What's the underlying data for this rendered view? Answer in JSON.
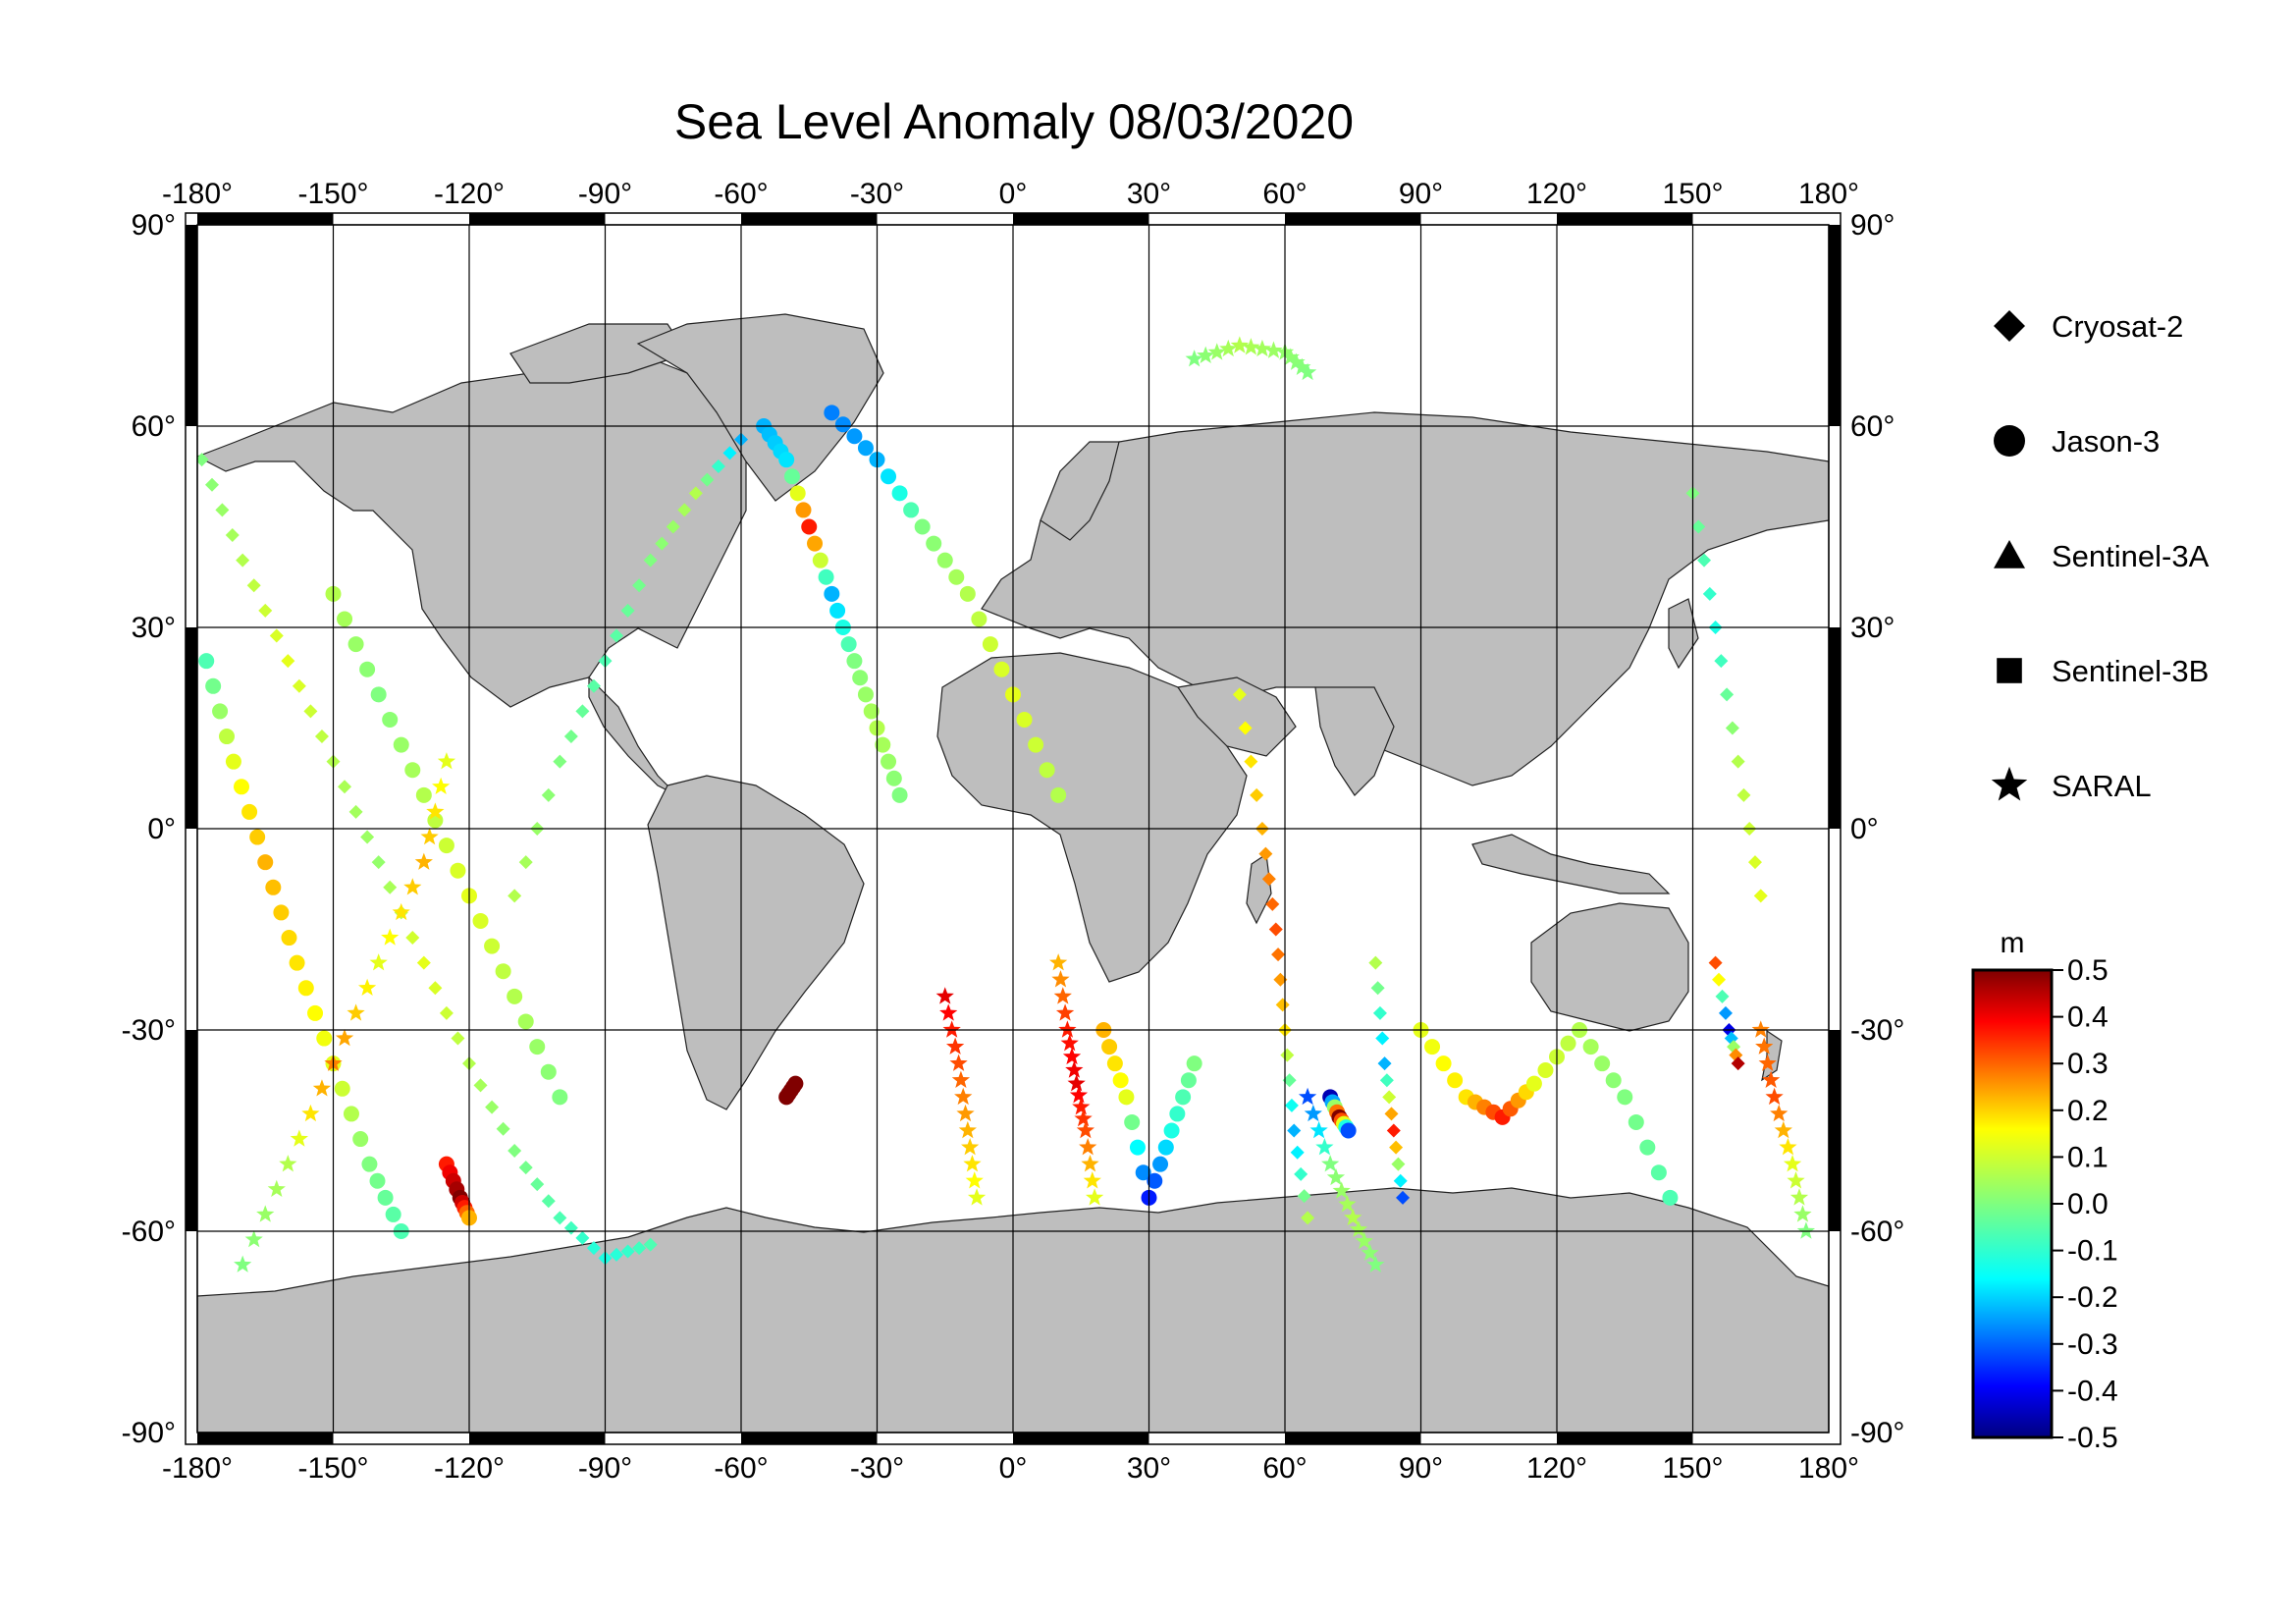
{
  "title": "Sea Level Anomaly 08/03/2020",
  "map": {
    "projection": "plate-carree",
    "lon_range": [
      -180,
      180
    ],
    "lat_range": [
      -90,
      90
    ],
    "lon_ticks": [
      "-180°",
      "-150°",
      "-120°",
      "-90°",
      "-60°",
      "-30°",
      "0°",
      "30°",
      "60°",
      "90°",
      "120°",
      "150°",
      "180°"
    ],
    "lat_ticks": [
      "90°",
      "60°",
      "30°",
      "0°",
      "-30°",
      "-60°",
      "-90°"
    ],
    "land_color": "#bebebe",
    "ocean_color": "#ffffff",
    "grid": true
  },
  "legend": {
    "items": [
      {
        "label": "Cryosat-2",
        "symbol": "diamond"
      },
      {
        "label": "Jason-3",
        "symbol": "circle"
      },
      {
        "label": "Sentinel-3A",
        "symbol": "triangle"
      },
      {
        "label": "Sentinel-3B",
        "symbol": "square"
      },
      {
        "label": "SARAL",
        "symbol": "star"
      }
    ]
  },
  "colorbar": {
    "unit": "m",
    "min": -0.5,
    "max": 0.5,
    "tick_labels": [
      "0.5",
      "0.4",
      "0.3",
      "0.2",
      "0.1",
      "0.0",
      "-0.1",
      "-0.2",
      "-0.3",
      "-0.4",
      "-0.5"
    ],
    "colormap": "jet"
  },
  "chart_data": {
    "type": "scatter",
    "title": "Sea Level Anomaly 08/03/2020",
    "xlabel": "",
    "ylabel": "",
    "xlim": [
      -180,
      180
    ],
    "ylim": [
      -90,
      90
    ],
    "value_unit": "m",
    "value_range": [
      -0.5,
      0.5
    ],
    "series": [
      {
        "name": "Cryosat-2",
        "marker": "diamond",
        "tracks": [
          {
            "lon": [
              -179,
              -170,
              -160,
              -150,
              -140,
              -130,
              -120,
              -110,
              -100,
              -90,
              -80
            ],
            "lat": [
              55,
              40,
              25,
              10,
              -5,
              -20,
              -35,
              -48,
              -58,
              -64,
              -62
            ],
            "value": [
              0.0,
              0.05,
              0.1,
              0.05,
              0.02,
              0.1,
              0.05,
              0.0,
              -0.05,
              -0.1,
              -0.05
            ]
          },
          {
            "lon": [
              -110,
              -100,
              -90,
              -80,
              -70,
              -60
            ],
            "lat": [
              -10,
              10,
              25,
              40,
              50,
              58
            ],
            "value": [
              0.05,
              0.0,
              -0.05,
              0.0,
              0.05,
              -0.2
            ]
          },
          {
            "lon": [
              50,
              55,
              58,
              60,
              62,
              65
            ],
            "lat": [
              20,
              0,
              -15,
              -30,
              -45,
              -58
            ],
            "value": [
              0.1,
              0.2,
              0.3,
              0.15,
              -0.2,
              0.05
            ]
          },
          {
            "lon": [
              80,
              82,
              84,
              86
            ],
            "lat": [
              -20,
              -35,
              -45,
              -55
            ],
            "value": [
              0.05,
              -0.2,
              0.35,
              -0.3
            ]
          },
          {
            "lon": [
              150,
              155,
              160,
              165
            ],
            "lat": [
              50,
              30,
              10,
              -10
            ],
            "value": [
              0.0,
              -0.1,
              0.05,
              0.1
            ]
          },
          {
            "lon": [
              155,
              158,
              160
            ],
            "lat": [
              -20,
              -30,
              -35
            ],
            "value": [
              0.3,
              -0.4,
              0.45
            ]
          }
        ]
      },
      {
        "name": "Jason-3",
        "marker": "circle",
        "tracks": [
          {
            "lon": [
              -178,
              -172,
              -165,
              -158,
              -150,
              -142,
              -135
            ],
            "lat": [
              25,
              10,
              -5,
              -20,
              -35,
              -50,
              -60
            ],
            "value": [
              -0.05,
              0.1,
              0.2,
              0.15,
              0.1,
              0.0,
              -0.05
            ]
          },
          {
            "lon": [
              -150,
              -140,
              -130,
              -120,
              -110,
              -100
            ],
            "lat": [
              35,
              20,
              5,
              -10,
              -25,
              -40
            ],
            "value": [
              0.05,
              0.0,
              0.05,
              0.1,
              0.05,
              0.0
            ]
          },
          {
            "lon": [
              -55,
              -50,
              -45,
              -40,
              -35,
              -30,
              -25
            ],
            "lat": [
              60,
              55,
              45,
              35,
              25,
              15,
              5
            ],
            "value": [
              -0.2,
              -0.15,
              0.35,
              -0.2,
              0.0,
              0.05,
              0.0
            ]
          },
          {
            "lon": [
              -40,
              -30,
              -20,
              -10,
              0,
              10
            ],
            "lat": [
              62,
              55,
              45,
              35,
              20,
              5
            ],
            "value": [
              -0.25,
              -0.2,
              0.0,
              0.05,
              0.1,
              0.05
            ]
          },
          {
            "lon": [
              20,
              25,
              30,
              35,
              40
            ],
            "lat": [
              -30,
              -40,
              -55,
              -45,
              -35
            ],
            "value": [
              0.2,
              0.1,
              -0.35,
              -0.1,
              0.0
            ]
          },
          {
            "lon": [
              90,
              100,
              108,
              115,
              125,
              135,
              145
            ],
            "lat": [
              -30,
              -40,
              -43,
              -38,
              -30,
              -40,
              -55
            ],
            "value": [
              0.1,
              0.15,
              0.35,
              0.1,
              0.05,
              0.0,
              -0.05
            ]
          },
          {
            "lon": [
              70,
              72,
              74
            ],
            "lat": [
              -40,
              -43,
              -45
            ],
            "value": [
              -0.45,
              0.5,
              -0.3
            ]
          },
          {
            "lon": [
              -125,
              -122,
              -120
            ],
            "lat": [
              -50,
              -55,
              -58
            ],
            "value": [
              0.35,
              0.5,
              0.2
            ]
          },
          {
            "lon": [
              -50,
              -48
            ],
            "lat": [
              -40,
              -38
            ],
            "value": [
              0.5,
              0.5
            ]
          }
        ]
      },
      {
        "name": "Sentinel-3A",
        "marker": "triangle",
        "tracks": []
      },
      {
        "name": "Sentinel-3B",
        "marker": "square",
        "tracks": []
      },
      {
        "name": "SARAL",
        "marker": "star",
        "tracks": [
          {
            "lon": [
              -170,
              -160,
              -150,
              -140,
              -130,
              -125
            ],
            "lat": [
              -65,
              -50,
              -35,
              -20,
              -5,
              10
            ],
            "value": [
              0.0,
              0.05,
              0.25,
              0.1,
              0.2,
              0.1
            ]
          },
          {
            "lon": [
              -15,
              -12,
              -10,
              -8
            ],
            "lat": [
              -25,
              -35,
              -45,
              -55
            ],
            "value": [
              0.4,
              0.3,
              0.2,
              0.1
            ]
          },
          {
            "lon": [
              10,
              12,
              14,
              16,
              18
            ],
            "lat": [
              -20,
              -30,
              -38,
              -45,
              -55
            ],
            "value": [
              0.2,
              0.35,
              0.4,
              0.3,
              0.1
            ]
          },
          {
            "lon": [
              65,
              70,
              75,
              80
            ],
            "lat": [
              -40,
              -50,
              -58,
              -65
            ],
            "value": [
              -0.3,
              0.0,
              0.05,
              0.0
            ]
          },
          {
            "lon": [
              165,
              168,
              172,
              175
            ],
            "lat": [
              -30,
              -40,
              -50,
              -60
            ],
            "value": [
              0.25,
              0.3,
              0.1,
              0.0
            ]
          },
          {
            "lon": [
              40,
              50,
              60,
              65
            ],
            "lat": [
              70,
              72,
              71,
              68
            ],
            "value": [
              0.0,
              0.05,
              0.02,
              0.0
            ]
          }
        ]
      }
    ]
  }
}
